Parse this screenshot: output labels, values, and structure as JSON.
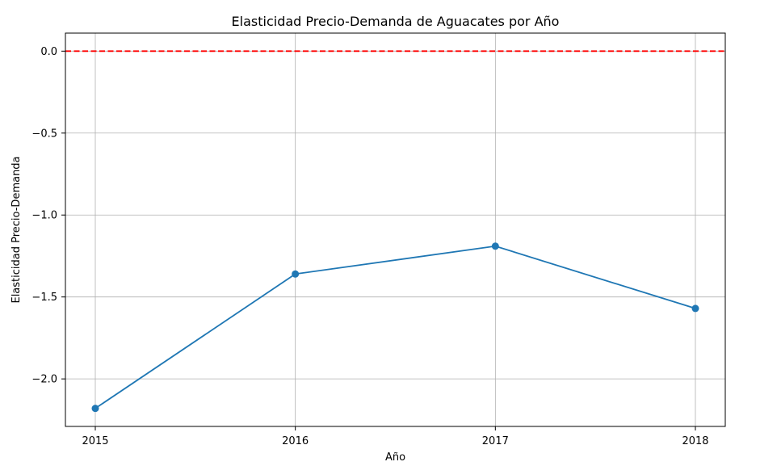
{
  "chart_data": {
    "type": "line",
    "title": "Elasticidad Precio-Demanda de Aguacates por Año",
    "xlabel": "Año",
    "ylabel": "Elasticidad Precio-Demanda",
    "x": [
      "2015",
      "2016",
      "2017",
      "2018"
    ],
    "series": [
      {
        "values": [
          -2.18,
          -1.36,
          -1.19,
          -1.57
        ],
        "color": "#1f77b4",
        "marker": "circle"
      }
    ],
    "reference_line": {
      "y": 0.0,
      "color": "#ff0000",
      "style": "dashed"
    },
    "yticks": [
      "0.0",
      "−0.5",
      "−1.0",
      "−1.5",
      "−2.0"
    ],
    "ytick_values": [
      0.0,
      -0.5,
      -1.0,
      -1.5,
      -2.0
    ],
    "ylim": [
      -2.29,
      0.11
    ],
    "grid": true,
    "legend": "none"
  }
}
